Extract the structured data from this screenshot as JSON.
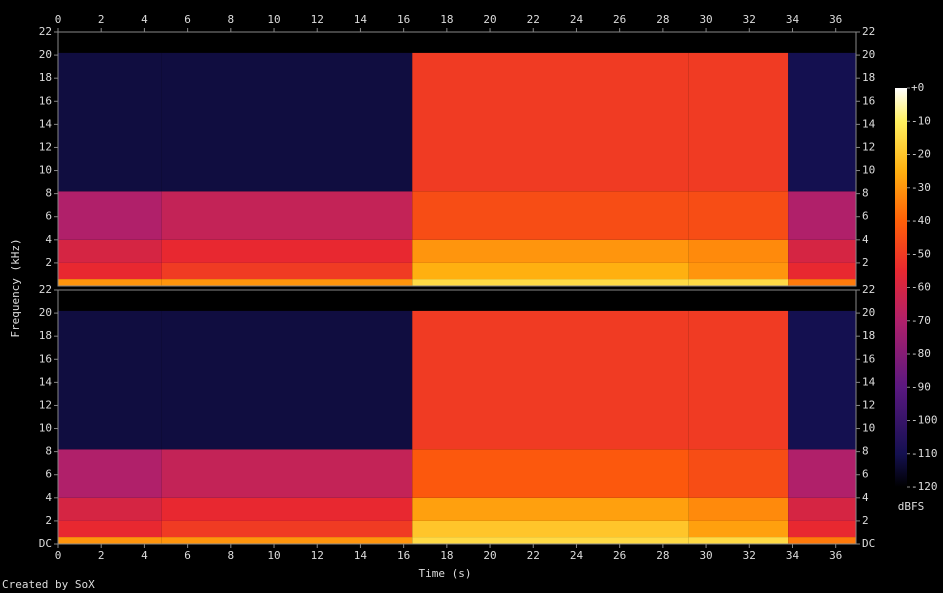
{
  "chart_data": {
    "type": "spectrogram",
    "x_label": "Time (s)",
    "y_label": "Frequency (kHz)",
    "xlim": [
      0,
      36.94
    ],
    "xticks": [
      0,
      2,
      4,
      6,
      8,
      10,
      12,
      14,
      16,
      18,
      20,
      22,
      24,
      26,
      28,
      30,
      32,
      34,
      36
    ],
    "time_edges": [
      0,
      4.8,
      16.4,
      29.2,
      33.8,
      36.94
    ],
    "freq_edges": [
      0,
      0.6,
      2,
      4,
      8.2,
      20.2,
      22
    ],
    "channels": [
      {
        "ylim": [
          0,
          22
        ],
        "yticks": [
          2,
          4,
          6,
          8,
          10,
          12,
          14,
          16,
          18,
          20,
          22
        ],
        "values": [
          [
            -30,
            -30,
            -15,
            -15,
            -35
          ],
          [
            -55,
            -50,
            -25,
            -30,
            -55
          ],
          [
            -60,
            -55,
            -30,
            -32,
            -60
          ],
          [
            -70,
            -65,
            -45,
            -45,
            -70
          ],
          [
            -112,
            -112,
            -50,
            -50,
            -110
          ],
          [
            -120,
            -120,
            -120,
            -120,
            -120
          ]
        ]
      },
      {
        "ylim": [
          0,
          22
        ],
        "yticks": [
          {
            "value": 0,
            "label": "DC"
          },
          2,
          4,
          6,
          8,
          10,
          12,
          14,
          16,
          18,
          20,
          22
        ],
        "values": [
          [
            -30,
            -30,
            -15,
            -15,
            -35
          ],
          [
            -55,
            -50,
            -20,
            -28,
            -55
          ],
          [
            -60,
            -55,
            -28,
            -32,
            -60
          ],
          [
            -70,
            -65,
            -42,
            -45,
            -70
          ],
          [
            -112,
            -112,
            -50,
            -50,
            -110
          ],
          [
            -120,
            -120,
            -120,
            -120,
            -120
          ]
        ]
      }
    ],
    "colorbar": {
      "label": "dBFS",
      "lim": [
        -120,
        0
      ],
      "ticks": [
        {
          "value": 0,
          "label": "+0"
        },
        -10,
        -20,
        -30,
        -40,
        -50,
        -60,
        -70,
        -80,
        -90,
        -100,
        -110,
        -120
      ]
    }
  },
  "footer": "Created by SoX"
}
